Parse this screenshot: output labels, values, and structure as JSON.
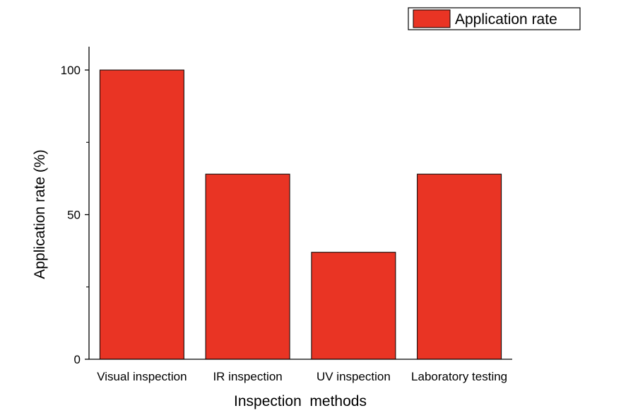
{
  "chart_data": {
    "type": "bar",
    "categories": [
      "Visual inspection",
      "IR inspection",
      "UV inspection",
      "Laboratory testing"
    ],
    "series": [
      {
        "name": "Application rate",
        "values": [
          100,
          64,
          37,
          64
        ]
      }
    ],
    "xlabel": "Inspection  methods",
    "ylabel": "Application rate (%)",
    "ylim": [
      0,
      107
    ],
    "yticks_major": [
      0,
      50,
      100
    ],
    "yticks_minor": [
      25,
      75
    ],
    "grid": false,
    "legend_position": "top-right",
    "bar_color": "#e93424"
  }
}
